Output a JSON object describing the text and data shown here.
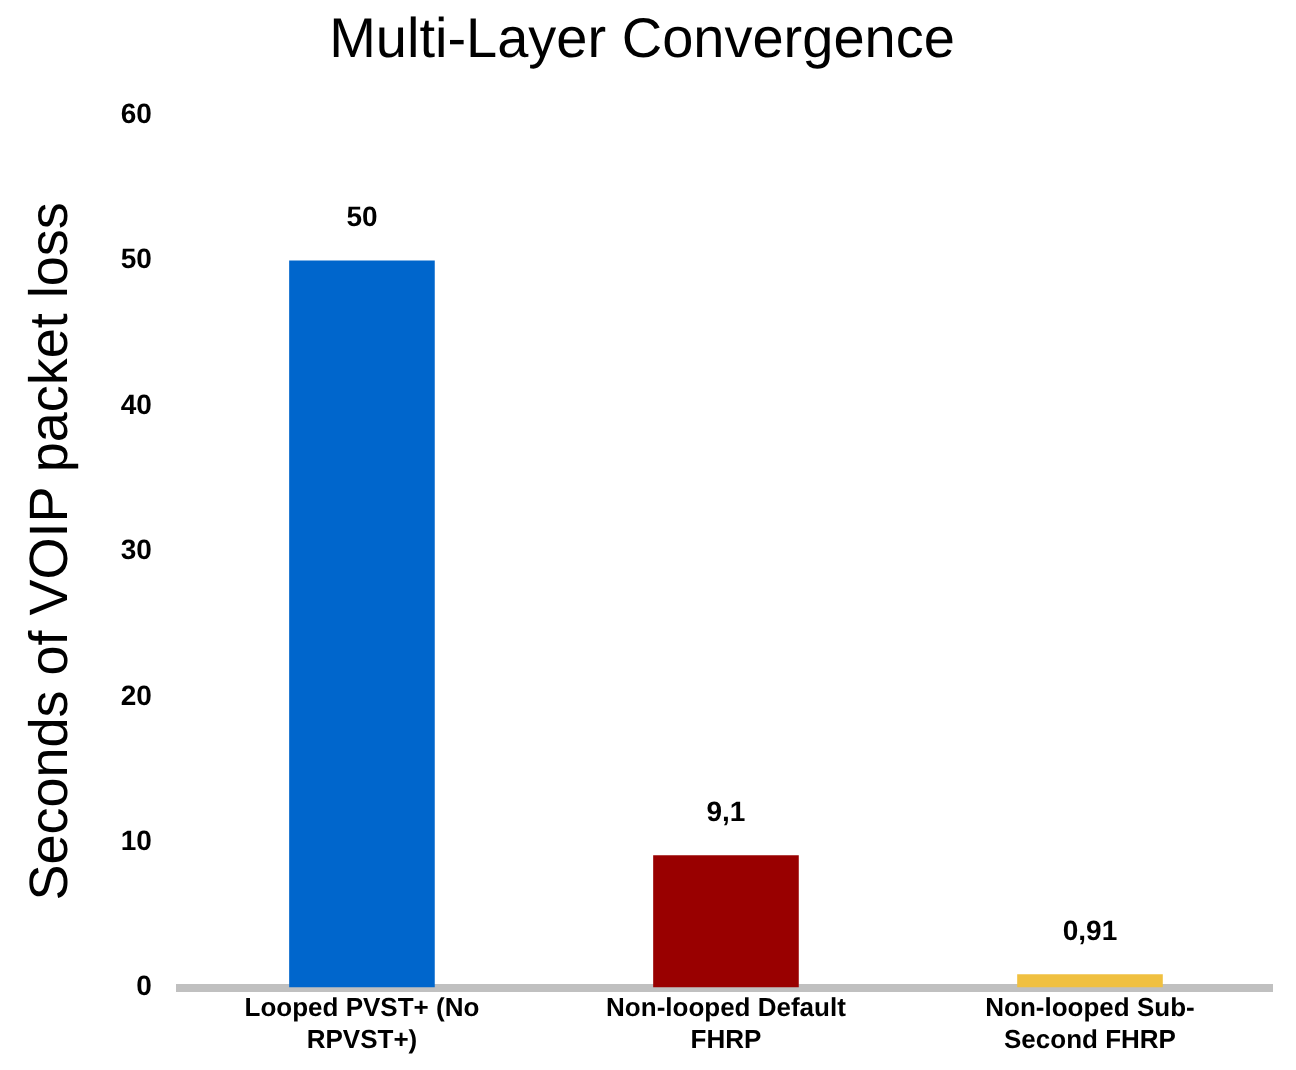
{
  "chart_data": {
    "type": "bar",
    "title": "Multi-Layer Convergence",
    "ylabel": "Seconds of VOIP packet loss",
    "categories": [
      "Looped PVST+ (No RPVST+)",
      "Non-looped Default FHRP",
      "Non-looped Sub-Second FHRP"
    ],
    "values": [
      50,
      9.1,
      0.91
    ],
    "colors": [
      "#0066cc",
      "#990000",
      "#f0c040"
    ],
    "value_labels": [
      "50",
      "9,1",
      "0,91"
    ],
    "ylim": [
      0,
      60
    ],
    "yticks": [
      0,
      10,
      20,
      30,
      40,
      50,
      60
    ],
    "grid": false,
    "legend": false
  }
}
